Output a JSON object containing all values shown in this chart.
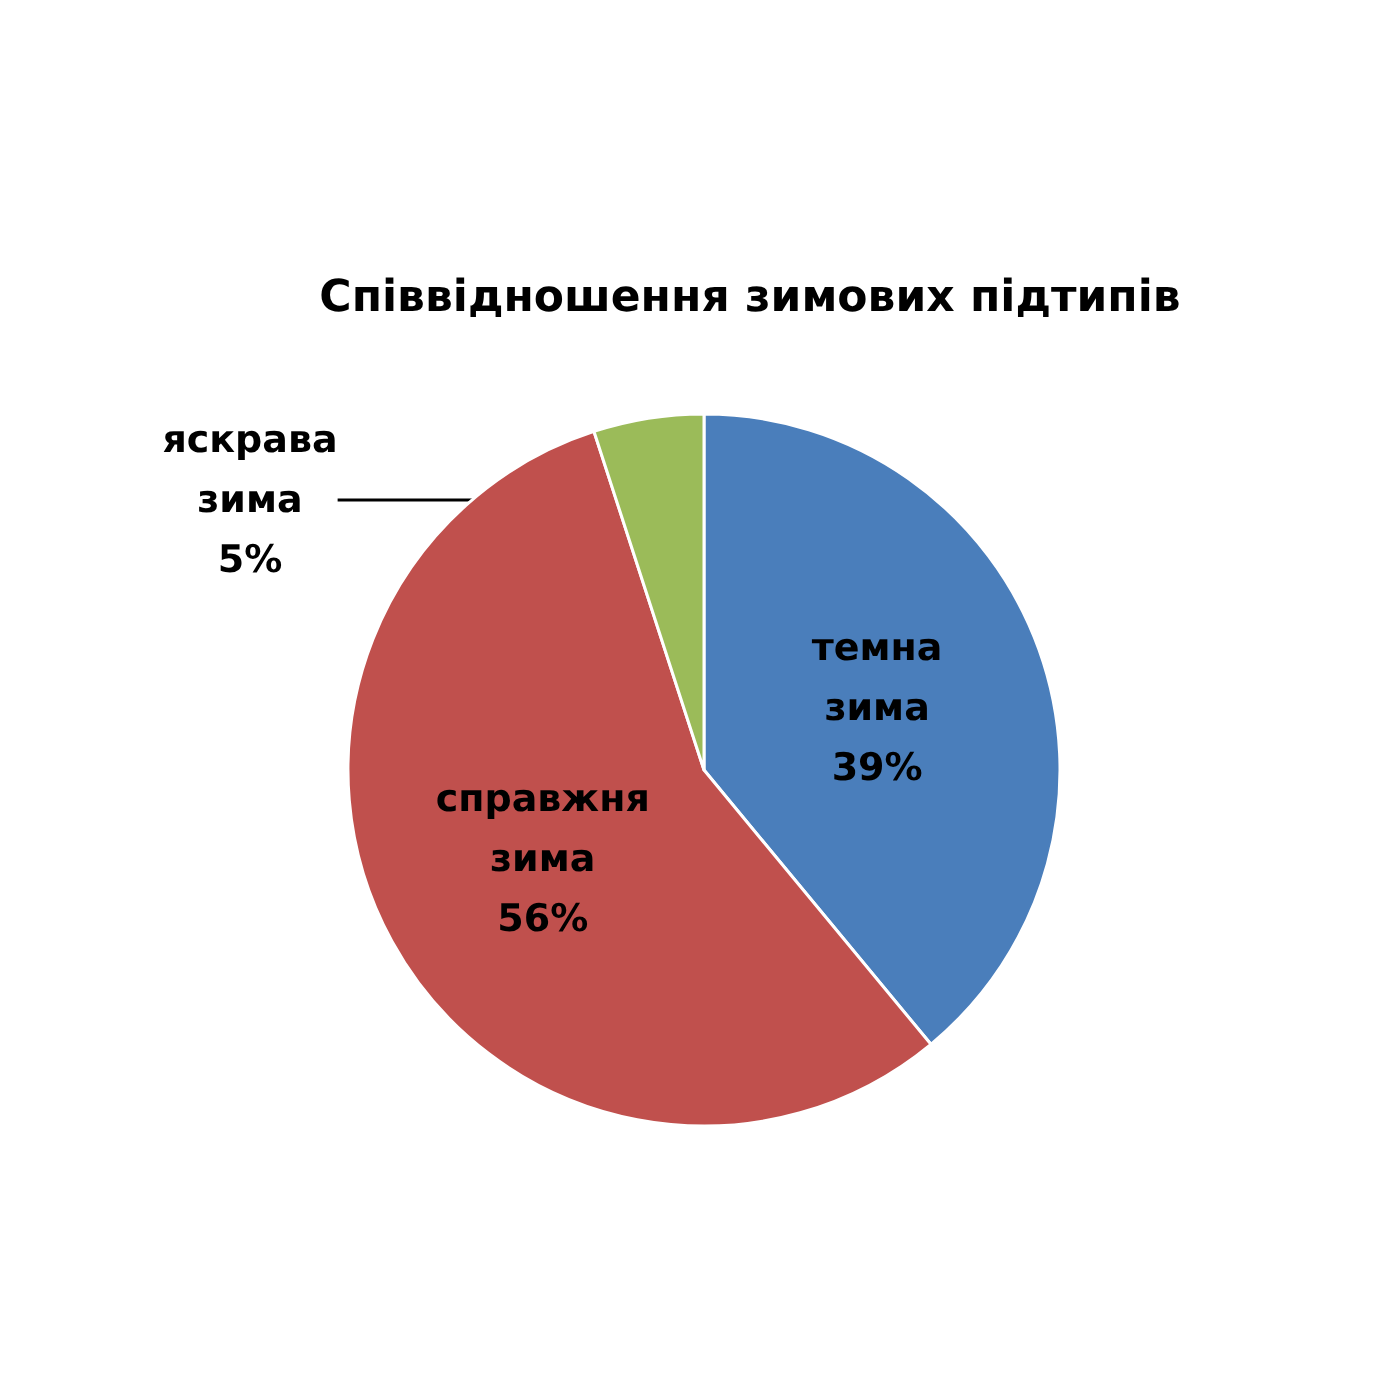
{
  "chart_data": {
    "type": "pie",
    "title": "Співвідношення зимових підтипів",
    "categories": [
      "темна зима",
      "справжня зима",
      "яскрава зима"
    ],
    "values": [
      39,
      56,
      5
    ],
    "colors": [
      "#4a7ebb",
      "#c0504d",
      "#9bbb59"
    ],
    "value_labels": [
      "39%",
      "56%",
      "5%"
    ],
    "legend": false
  }
}
